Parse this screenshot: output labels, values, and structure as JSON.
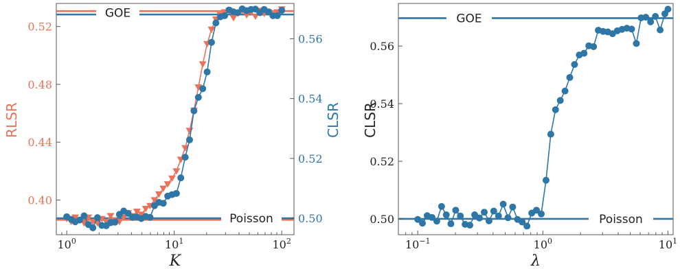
{
  "colors": {
    "rlsr": "#e8735a",
    "clsr": "#2e76a6",
    "axis": "#555555",
    "text": "#222222"
  },
  "chart_data": [
    {
      "type": "line",
      "title": "",
      "xlabel": "K",
      "ylabel_left": "RLSR",
      "ylabel_right": "CLSR",
      "xscale": "log",
      "xlim": [
        0.8,
        130
      ],
      "ylim_left": [
        0.376,
        0.536
      ],
      "ylim_right": [
        0.4945,
        0.5718
      ],
      "x_ticks": [
        "10^0",
        "10^1",
        "10^2"
      ],
      "y_ticks_left": [
        "0.40",
        "0.44",
        "0.48",
        "0.52"
      ],
      "y_ticks_right": [
        "0.50",
        "0.52",
        "0.54",
        "0.56"
      ],
      "reference_lines_left": [
        {
          "label": "GOE",
          "y": 0.5307
        },
        {
          "label": "Poisson",
          "y": 0.3863
        }
      ],
      "reference_lines_right": [
        {
          "label": "GOE",
          "y": 0.5681
        },
        {
          "label": "Poisson",
          "y": 0.5
        }
      ],
      "series": [
        {
          "name": "RLSR",
          "axis": "left",
          "marker": "triangle-down",
          "x": [
            1.0,
            1.1,
            1.2,
            1.32,
            1.45,
            1.59,
            1.75,
            1.93,
            2.12,
            2.33,
            2.56,
            2.81,
            3.09,
            3.39,
            3.73,
            4.1,
            4.5,
            4.94,
            5.43,
            5.96,
            6.55,
            7.2,
            7.91,
            8.69,
            9.54,
            10.48,
            11.51,
            12.65,
            13.89,
            15.26,
            16.77,
            18.42,
            20.24,
            22.23,
            24.42,
            26.83,
            29.47,
            32.37,
            35.56,
            39.07,
            42.92,
            47.15,
            51.79,
            56.9,
            62.5,
            68.66,
            75.43,
            82.86,
            91.03,
            100.0
          ],
          "values": [
            0.387,
            0.385,
            0.388,
            0.386,
            0.384,
            0.388,
            0.385,
            0.384,
            0.387,
            0.385,
            0.389,
            0.386,
            0.385,
            0.388,
            0.391,
            0.389,
            0.392,
            0.39,
            0.394,
            0.396,
            0.4,
            0.404,
            0.408,
            0.411,
            0.415,
            0.42,
            0.428,
            0.436,
            0.448,
            0.462,
            0.478,
            0.494,
            0.508,
            0.518,
            0.525,
            0.528,
            0.53,
            0.531,
            0.526,
            0.529,
            0.531,
            0.528,
            0.53,
            0.527,
            0.531,
            0.529,
            0.53,
            0.528,
            0.53,
            0.532
          ]
        },
        {
          "name": "CLSR",
          "axis": "right",
          "marker": "circle",
          "x": [
            1.0,
            1.1,
            1.2,
            1.32,
            1.45,
            1.59,
            1.75,
            1.93,
            2.12,
            2.33,
            2.56,
            2.81,
            3.09,
            3.39,
            3.73,
            4.1,
            4.5,
            4.94,
            5.43,
            5.96,
            6.55,
            7.2,
            7.91,
            8.69,
            9.54,
            10.48,
            11.51,
            12.65,
            13.89,
            15.26,
            16.77,
            18.42,
            20.24,
            22.23,
            24.42,
            26.83,
            29.47,
            32.37,
            35.56,
            39.07,
            42.92,
            47.15,
            51.79,
            56.9,
            62.5,
            68.66,
            75.43,
            82.86,
            91.03,
            100.0
          ],
          "values": [
            0.5005,
            0.4996,
            0.4988,
            0.4994,
            0.5008,
            0.4979,
            0.4968,
            0.5002,
            0.4976,
            0.4975,
            0.4985,
            0.4987,
            0.5013,
            0.5024,
            0.5016,
            0.5003,
            0.5004,
            0.4999,
            0.5006,
            0.5003,
            0.5042,
            0.5053,
            0.505,
            0.5074,
            0.5079,
            0.5083,
            0.5135,
            0.5204,
            0.5262,
            0.5359,
            0.5404,
            0.5433,
            0.5489,
            0.5588,
            0.5653,
            0.5673,
            0.5677,
            0.5696,
            0.569,
            0.5687,
            0.57,
            0.5694,
            0.5698,
            0.5699,
            0.5687,
            0.5698,
            0.569,
            0.5677,
            0.5677,
            0.5695
          ]
        }
      ]
    },
    {
      "type": "line",
      "title": "",
      "xlabel": "λ",
      "ylabel": "CLSR",
      "xscale": "log",
      "xlim": [
        0.07,
        11
      ],
      "ylim": [
        0.4945,
        0.5748
      ],
      "x_ticks": [
        "10^-1",
        "10^0",
        "10^1"
      ],
      "y_ticks": [
        "0.50",
        "0.52",
        "0.54",
        "0.56"
      ],
      "reference_lines": [
        {
          "label": "GOE",
          "y": 0.5697
        },
        {
          "label": "Poisson",
          "y": 0.5
        }
      ],
      "series": [
        {
          "name": "CLSR",
          "marker": "circle",
          "x": [
            0.1,
            0.109,
            0.119,
            0.13,
            0.142,
            0.155,
            0.169,
            0.184,
            0.201,
            0.219,
            0.239,
            0.261,
            0.285,
            0.311,
            0.34,
            0.371,
            0.405,
            0.442,
            0.482,
            0.526,
            0.574,
            0.627,
            0.684,
            0.746,
            0.815,
            0.889,
            0.971,
            1.06,
            1.157,
            1.262,
            1.378,
            1.504,
            1.641,
            1.791,
            1.955,
            2.134,
            2.329,
            2.542,
            2.775,
            3.029,
            3.306,
            3.608,
            3.938,
            4.298,
            4.691,
            5.121,
            5.589,
            6.1,
            6.658,
            7.267,
            7.932,
            8.658,
            9.45,
            10.0
          ],
          "values": [
            0.4998,
            0.4985,
            0.5011,
            0.5005,
            0.4992,
            0.5043,
            0.5014,
            0.4983,
            0.503,
            0.501,
            0.4981,
            0.4978,
            0.5014,
            0.5003,
            0.5023,
            0.4993,
            0.5027,
            0.501,
            0.5051,
            0.5004,
            0.5041,
            0.4998,
            0.4989,
            0.4975,
            0.502,
            0.503,
            0.5017,
            0.5134,
            0.5294,
            0.5379,
            0.5411,
            0.5444,
            0.5491,
            0.5536,
            0.5569,
            0.5575,
            0.5601,
            0.5598,
            0.5655,
            0.5651,
            0.5649,
            0.5643,
            0.5653,
            0.5658,
            0.5662,
            0.5659,
            0.5609,
            0.5698,
            0.57,
            0.5684,
            0.5703,
            0.5656,
            0.5712,
            0.5728
          ]
        }
      ]
    }
  ]
}
